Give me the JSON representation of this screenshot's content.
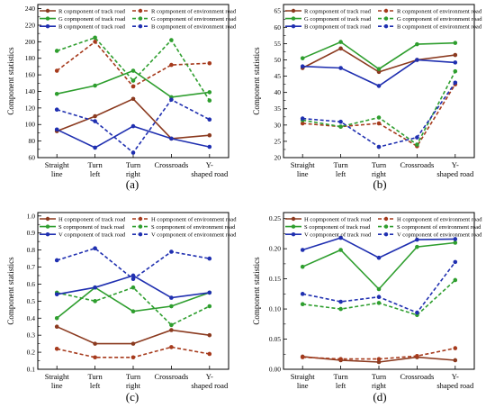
{
  "panels": [
    {
      "label": "(a)",
      "chart_data": {
        "type": "line",
        "ylabel": "Component statistics",
        "categories": [
          [
            "Straight",
            "line"
          ],
          [
            "Turn",
            "left"
          ],
          [
            "Turn",
            "right"
          ],
          [
            "Crossroads"
          ],
          [
            "Y-",
            "shaped road"
          ]
        ],
        "ylim": [
          60,
          245
        ],
        "yticks": [
          60,
          80,
          100,
          120,
          140,
          160,
          180,
          200,
          220,
          240
        ],
        "minor_ticks": true,
        "grid": false,
        "legend_position": "top-left",
        "series": [
          {
            "name": "R copmponent of track road",
            "color": "#8b3a1f",
            "dashed": false,
            "values": [
              92,
              110,
              131,
              83,
              87
            ]
          },
          {
            "name": "R copmponent of environment road",
            "color": "#a63a1c",
            "dashed": true,
            "values": [
              165,
              200,
              146,
              172,
              174
            ]
          },
          {
            "name": "G copmponent of track road",
            "color": "#2e9e2e",
            "dashed": false,
            "values": [
              137,
              147,
              165,
              133,
              139
            ]
          },
          {
            "name": "G copmponent of environment road",
            "color": "#2e9e2e",
            "dashed": true,
            "values": [
              189,
              205,
              153,
              202,
              129
            ]
          },
          {
            "name": "B copmponent of track road",
            "color": "#1f2fb0",
            "dashed": false,
            "values": [
              94,
              72,
              98,
              83,
              73
            ]
          },
          {
            "name": "B copmponent of environment road",
            "color": "#1f2fb0",
            "dashed": true,
            "values": [
              118,
              104,
              66,
              130,
              106
            ]
          }
        ]
      }
    },
    {
      "label": "(b)",
      "chart_data": {
        "type": "line",
        "ylabel": "Component statistics",
        "categories": [
          [
            "Straight",
            "line"
          ],
          [
            "Turn",
            "left"
          ],
          [
            "Turn",
            "right"
          ],
          [
            "Crossroads"
          ],
          [
            "Y-",
            "shaped road"
          ]
        ],
        "ylim": [
          20,
          67
        ],
        "yticks": [
          20,
          25,
          30,
          35,
          40,
          45,
          50,
          55,
          60,
          65
        ],
        "minor_ticks": true,
        "grid": false,
        "legend_position": "top-left",
        "series": [
          {
            "name": "R copmponent of track road",
            "color": "#8b3a1f",
            "dashed": false,
            "values": [
              47.5,
              53.5,
              46.3,
              50,
              51.5
            ]
          },
          {
            "name": "R copmponent of environment road",
            "color": "#a63a1c",
            "dashed": true,
            "values": [
              30.5,
              29.5,
              30.5,
              23.5,
              42.5
            ]
          },
          {
            "name": "G copmponent of track road",
            "color": "#2e9e2e",
            "dashed": false,
            "values": [
              50.5,
              55.5,
              47.2,
              54.8,
              55.2
            ]
          },
          {
            "name": "G copmponent of environment road",
            "color": "#2e9e2e",
            "dashed": true,
            "values": [
              31.5,
              29.5,
              32.3,
              24,
              46.5
            ]
          },
          {
            "name": "B copmponent of track road",
            "color": "#1f2fb0",
            "dashed": false,
            "values": [
              48,
              47.5,
              42,
              50,
              49.2
            ]
          },
          {
            "name": "B copmponent of environment road",
            "color": "#1f2fb0",
            "dashed": true,
            "values": [
              32,
              31,
              23.3,
              26.2,
              43
            ]
          }
        ]
      }
    },
    {
      "label": "(c)",
      "chart_data": {
        "type": "line",
        "ylabel": "Component statistics",
        "categories": [
          [
            "Straight",
            "line"
          ],
          [
            "Turn",
            "left"
          ],
          [
            "Turn",
            "right"
          ],
          [
            "Crossroads"
          ],
          [
            "Y-",
            "shaped road"
          ]
        ],
        "ylim": [
          0.1,
          1.02
        ],
        "yticks": [
          0.1,
          0.2,
          0.3,
          0.4,
          0.5,
          0.6,
          0.7,
          0.8,
          0.9,
          1.0
        ],
        "minor_ticks": true,
        "grid": false,
        "legend_position": "top-left",
        "series": [
          {
            "name": "H copmponent of track road",
            "color": "#8b3a1f",
            "dashed": false,
            "values": [
              0.35,
              0.25,
              0.25,
              0.33,
              0.3
            ]
          },
          {
            "name": "H copmponent of environment road",
            "color": "#a63a1c",
            "dashed": true,
            "values": [
              0.22,
              0.17,
              0.17,
              0.23,
              0.19
            ]
          },
          {
            "name": "S copmponent of track road",
            "color": "#2e9e2e",
            "dashed": false,
            "values": [
              0.4,
              0.58,
              0.44,
              0.47,
              0.55
            ]
          },
          {
            "name": "S copmponent of environment road",
            "color": "#2e9e2e",
            "dashed": true,
            "values": [
              0.55,
              0.5,
              0.58,
              0.36,
              0.47
            ]
          },
          {
            "name": "V copmponent of track road",
            "color": "#1f2fb0",
            "dashed": false,
            "values": [
              0.54,
              0.58,
              0.65,
              0.52,
              0.55
            ]
          },
          {
            "name": "V copmponent of environment road",
            "color": "#1f2fb0",
            "dashed": true,
            "values": [
              0.74,
              0.81,
              0.63,
              0.79,
              0.75
            ]
          }
        ]
      }
    },
    {
      "label": "(d)",
      "chart_data": {
        "type": "line",
        "ylabel": "Component statistics",
        "categories": [
          [
            "Straight",
            "line"
          ],
          [
            "Turn",
            "left"
          ],
          [
            "Turn",
            "right"
          ],
          [
            "Crossroads"
          ],
          [
            "Y-",
            "shaped road"
          ]
        ],
        "ylim": [
          0.0,
          0.26
        ],
        "yticks": [
          0.0,
          0.05,
          0.1,
          0.15,
          0.2,
          0.25
        ],
        "minor_ticks": true,
        "grid": false,
        "legend_position": "top-left",
        "series": [
          {
            "name": "H copmponent of track road",
            "color": "#8b3a1f",
            "dashed": false,
            "values": [
              0.021,
              0.015,
              0.012,
              0.02,
              0.015
            ]
          },
          {
            "name": "H copmponent of environment road",
            "color": "#a63a1c",
            "dashed": true,
            "values": [
              0.02,
              0.017,
              0.017,
              0.022,
              0.035
            ]
          },
          {
            "name": "S copmponent of track road",
            "color": "#2e9e2e",
            "dashed": false,
            "values": [
              0.17,
              0.198,
              0.133,
              0.203,
              0.21
            ]
          },
          {
            "name": "S copmponent of environment road",
            "color": "#2e9e2e",
            "dashed": true,
            "values": [
              0.108,
              0.1,
              0.11,
              0.09,
              0.148
            ]
          },
          {
            "name": "V copmponent of track road",
            "color": "#1f2fb0",
            "dashed": false,
            "values": [
              0.198,
              0.218,
              0.185,
              0.215,
              0.216
            ]
          },
          {
            "name": "V copmponent of environment road",
            "color": "#1f2fb0",
            "dashed": true,
            "values": [
              0.125,
              0.112,
              0.12,
              0.094,
              0.178
            ]
          }
        ]
      }
    }
  ]
}
